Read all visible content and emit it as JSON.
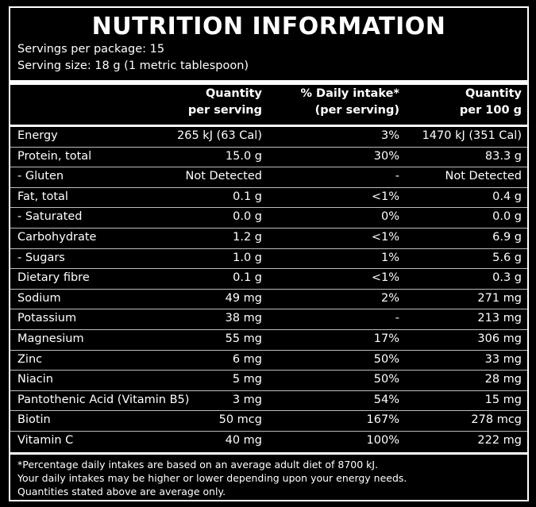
{
  "title": "NUTRITION INFORMATION",
  "servings_per_package": "Servings per package: 15",
  "serving_size": "Serving size: 18 g (1 metric tablespoon)",
  "headers": {
    "per_serving": [
      "Quantity",
      "per serving"
    ],
    "daily_intake": [
      "% Daily intake*",
      "(per serving)"
    ],
    "per_100g": [
      "Quantity",
      "per 100 g"
    ]
  },
  "rows": [
    {
      "name": "Energy",
      "per_serving": "265 kJ (63 Cal)",
      "daily": "3%",
      "per_100g": "1470 kJ (351 Cal)"
    },
    {
      "name": "Protein, total",
      "per_serving": "15.0 g",
      "daily": "30%",
      "per_100g": "83.3 g"
    },
    {
      "name": "- Gluten",
      "per_serving": "Not Detected",
      "daily": "-",
      "per_100g": "Not Detected"
    },
    {
      "name": "Fat, total",
      "per_serving": "0.1 g",
      "daily": "<1%",
      "per_100g": "0.4 g"
    },
    {
      "name": "- Saturated",
      "per_serving": "0.0 g",
      "daily": "0%",
      "per_100g": "0.0 g"
    },
    {
      "name": "Carbohydrate",
      "per_serving": "1.2 g",
      "daily": "<1%",
      "per_100g": "6.9 g"
    },
    {
      "name": "- Sugars",
      "per_serving": "1.0 g",
      "daily": "1%",
      "per_100g": "5.6 g"
    },
    {
      "name": "Dietary fibre",
      "per_serving": "0.1 g",
      "daily": "<1%",
      "per_100g": "0.3 g"
    },
    {
      "name": "Sodium",
      "per_serving": "49 mg",
      "daily": "2%",
      "per_100g": "271 mg"
    },
    {
      "name": "Potassium",
      "per_serving": "38 mg",
      "daily": "-",
      "per_100g": "213 mg"
    },
    {
      "name": "Magnesium",
      "per_serving": "55 mg",
      "daily": "17%",
      "per_100g": "306 mg"
    },
    {
      "name": "Zinc",
      "per_serving": "6 mg",
      "daily": "50%",
      "per_100g": "33 mg"
    },
    {
      "name": "Niacin",
      "per_serving": "5 mg",
      "daily": "50%",
      "per_100g": "28 mg"
    },
    {
      "name": "Pantothenic Acid (Vitamin B5)",
      "per_serving": "3 mg",
      "daily": "54%",
      "per_100g": "15 mg"
    },
    {
      "name": "Biotin",
      "per_serving": "50 mcg",
      "daily": "167%",
      "per_100g": "278 mcg"
    },
    {
      "name": "Vitamin C",
      "per_serving": "40 mg",
      "daily": "100%",
      "per_100g": "222 mg"
    }
  ],
  "footnotes": [
    "*Percentage daily intakes are based on an average adult diet of 8700 kJ.",
    "Your daily intakes may be higher or lower depending upon your energy needs.",
    "Quantities stated above are average only."
  ],
  "colors": {
    "background": "#000000",
    "text": "#ffffff",
    "rule": "#ffffff",
    "row_divider": "#bdbdbd"
  }
}
